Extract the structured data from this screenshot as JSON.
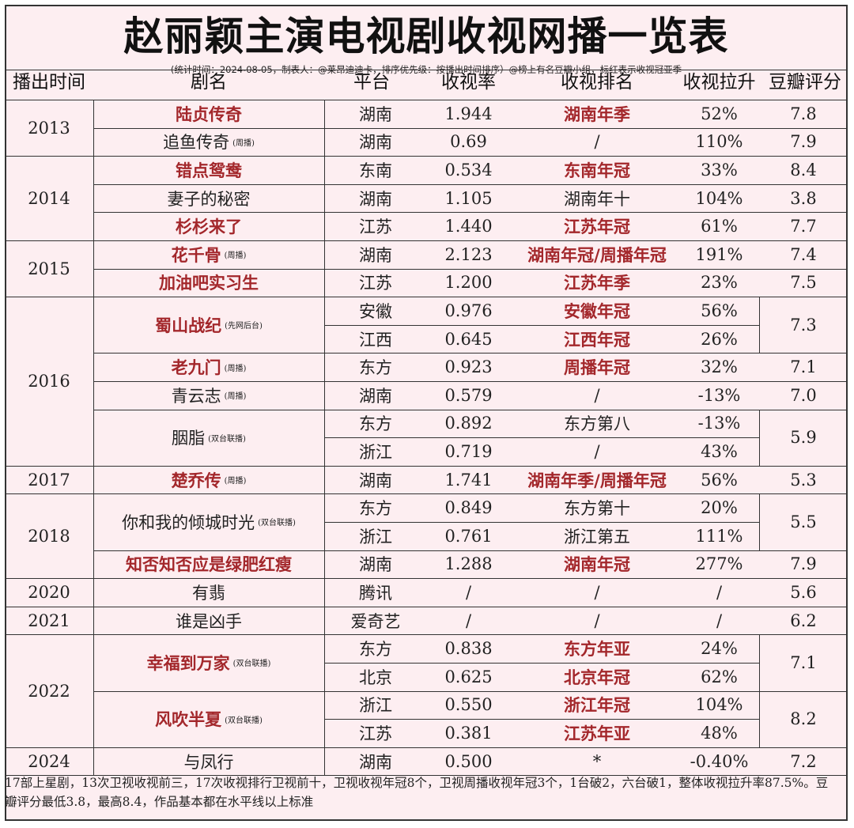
{
  "title": "赵丽颖主演电视剧收视网播一览表",
  "subtitle": "(统计时间：2024-08-05，制表人：@莱昂迪迪卡，排序优先级：按播出时间排序）@榜上有名豆瓣小组，标红表示收视冠亚季",
  "headers": [
    "播出时间",
    "剧名",
    "平台",
    "收视率",
    "收视排名",
    "收视拉升",
    "豆瓣评分"
  ],
  "colors": {
    "highlight_red": "#a3272b",
    "background": "#fdeef1",
    "border": "#333333"
  },
  "years": [
    {
      "year": "2013",
      "start": 0,
      "span": 2
    },
    {
      "year": "2014",
      "start": 2,
      "span": 3
    },
    {
      "year": "2015",
      "start": 5,
      "span": 2
    },
    {
      "year": "2016",
      "start": 7,
      "span": 6
    },
    {
      "year": "2017",
      "start": 13,
      "span": 1
    },
    {
      "year": "2018",
      "start": 14,
      "span": 3
    },
    {
      "year": "2020",
      "start": 17,
      "span": 1
    },
    {
      "year": "2021",
      "start": 18,
      "span": 1
    },
    {
      "year": "2022",
      "start": 19,
      "span": 4
    },
    {
      "year": "2024",
      "start": 23,
      "span": 1
    }
  ],
  "dramas": [
    {
      "name": "陆贞传奇",
      "note": "",
      "red": true,
      "start": 0,
      "span": 1,
      "douban": "7.8"
    },
    {
      "name": "追鱼传奇",
      "note": "(周播)",
      "red": false,
      "start": 1,
      "span": 1,
      "douban": "7.9"
    },
    {
      "name": "错点鸳鸯",
      "note": "",
      "red": true,
      "start": 2,
      "span": 1,
      "douban": "8.4"
    },
    {
      "name": "妻子的秘密",
      "note": "",
      "red": false,
      "start": 3,
      "span": 1,
      "douban": "3.8"
    },
    {
      "name": "杉杉来了",
      "note": "",
      "red": true,
      "start": 4,
      "span": 1,
      "douban": "7.7"
    },
    {
      "name": "花千骨",
      "note": "(周播)",
      "red": true,
      "start": 5,
      "span": 1,
      "douban": "7.4"
    },
    {
      "name": "加油吧实习生",
      "note": "",
      "red": true,
      "start": 6,
      "span": 1,
      "douban": "7.5"
    },
    {
      "name": "蜀山战纪",
      "note": "(先网后台)",
      "red": true,
      "start": 7,
      "span": 2,
      "douban": "7.3"
    },
    {
      "name": "老九门",
      "note": "(周播)",
      "red": true,
      "start": 9,
      "span": 1,
      "douban": "7.1"
    },
    {
      "name": "青云志",
      "note": "(周播)",
      "red": false,
      "start": 10,
      "span": 1,
      "douban": "7.0"
    },
    {
      "name": "胭脂",
      "note": "(双台联播)",
      "red": false,
      "start": 11,
      "span": 2,
      "douban": "5.9"
    },
    {
      "name": "楚乔传",
      "note": "(周播)",
      "red": true,
      "start": 13,
      "span": 1,
      "douban": "5.3"
    },
    {
      "name": "你和我的倾城时光",
      "note": "(双台联播)",
      "red": false,
      "start": 14,
      "span": 2,
      "douban": "5.5"
    },
    {
      "name": "知否知否应是绿肥红瘦",
      "note": "",
      "red": true,
      "start": 16,
      "span": 1,
      "douban": "7.9"
    },
    {
      "name": "有翡",
      "note": "",
      "red": false,
      "start": 17,
      "span": 1,
      "douban": "5.6"
    },
    {
      "name": "谁是凶手",
      "note": "",
      "red": false,
      "start": 18,
      "span": 1,
      "douban": "6.2"
    },
    {
      "name": "幸福到万家",
      "note": "(双台联播)",
      "red": true,
      "start": 19,
      "span": 2,
      "douban": "7.1"
    },
    {
      "name": "风吹半夏",
      "note": "(双台联播)",
      "red": true,
      "start": 21,
      "span": 2,
      "douban": "8.2"
    },
    {
      "name": "与凤行",
      "note": "",
      "red": false,
      "start": 23,
      "span": 1,
      "douban": "7.2"
    }
  ],
  "rows": [
    {
      "platform": "湖南",
      "rating": "1.944",
      "rank": "湖南年季",
      "rank_red": true,
      "lift": "52%"
    },
    {
      "platform": "湖南",
      "rating": "0.69",
      "rank": "/",
      "rank_red": false,
      "lift": "110%"
    },
    {
      "platform": "东南",
      "rating": "0.534",
      "rank": "东南年冠",
      "rank_red": true,
      "lift": "33%"
    },
    {
      "platform": "湖南",
      "rating": "1.105",
      "rank": "湖南年十",
      "rank_red": false,
      "lift": "104%"
    },
    {
      "platform": "江苏",
      "rating": "1.440",
      "rank": "江苏年冠",
      "rank_red": true,
      "lift": "61%"
    },
    {
      "platform": "湖南",
      "rating": "2.123",
      "rank": "湖南年冠/周播年冠",
      "rank_red": true,
      "lift": "191%"
    },
    {
      "platform": "江苏",
      "rating": "1.200",
      "rank": "江苏年季",
      "rank_red": true,
      "lift": "23%"
    },
    {
      "platform": "安徽",
      "rating": "0.976",
      "rank": "安徽年冠",
      "rank_red": true,
      "lift": "56%"
    },
    {
      "platform": "江西",
      "rating": "0.645",
      "rank": "江西年冠",
      "rank_red": true,
      "lift": "26%"
    },
    {
      "platform": "东方",
      "rating": "0.923",
      "rank": "周播年冠",
      "rank_red": true,
      "lift": "32%"
    },
    {
      "platform": "湖南",
      "rating": "0.579",
      "rank": "/",
      "rank_red": false,
      "lift": "-13%"
    },
    {
      "platform": "东方",
      "rating": "0.892",
      "rank": "东方第八",
      "rank_red": false,
      "lift": "-13%"
    },
    {
      "platform": "浙江",
      "rating": "0.719",
      "rank": "/",
      "rank_red": false,
      "lift": "43%"
    },
    {
      "platform": "湖南",
      "rating": "1.741",
      "rank": "湖南年季/周播年冠",
      "rank_red": true,
      "lift": "56%"
    },
    {
      "platform": "东方",
      "rating": "0.849",
      "rank": "东方第十",
      "rank_red": false,
      "lift": "20%"
    },
    {
      "platform": "浙江",
      "rating": "0.761",
      "rank": "浙江第五",
      "rank_red": false,
      "lift": "111%"
    },
    {
      "platform": "湖南",
      "rating": "1.288",
      "rank": "湖南年冠",
      "rank_red": true,
      "lift": "277%"
    },
    {
      "platform": "腾讯",
      "rating": "/",
      "rank": "/",
      "rank_red": false,
      "lift": "/"
    },
    {
      "platform": "爱奇艺",
      "rating": "/",
      "rank": "/",
      "rank_red": false,
      "lift": "/"
    },
    {
      "platform": "东方",
      "rating": "0.838",
      "rank": "东方年亚",
      "rank_red": true,
      "lift": "24%"
    },
    {
      "platform": "北京",
      "rating": "0.625",
      "rank": "北京年冠",
      "rank_red": true,
      "lift": "62%"
    },
    {
      "platform": "浙江",
      "rating": "0.550",
      "rank": "浙江年冠",
      "rank_red": true,
      "lift": "104%"
    },
    {
      "platform": "江苏",
      "rating": "0.381",
      "rank": "江苏年亚",
      "rank_red": true,
      "lift": "48%"
    },
    {
      "platform": "湖南",
      "rating": "0.500",
      "rank": "*",
      "rank_red": false,
      "lift": "-0.40%"
    }
  ],
  "footer": "17部上星剧，13次卫视收视前三，17次收视排行卫视前十，卫视收视年冠8个，卫视周播收视年冠3个，1台破2，六台破1，整体收视拉升率87.5%。豆瓣评分最低3.8，最高8.4，作品基本都在水平线以上标准"
}
